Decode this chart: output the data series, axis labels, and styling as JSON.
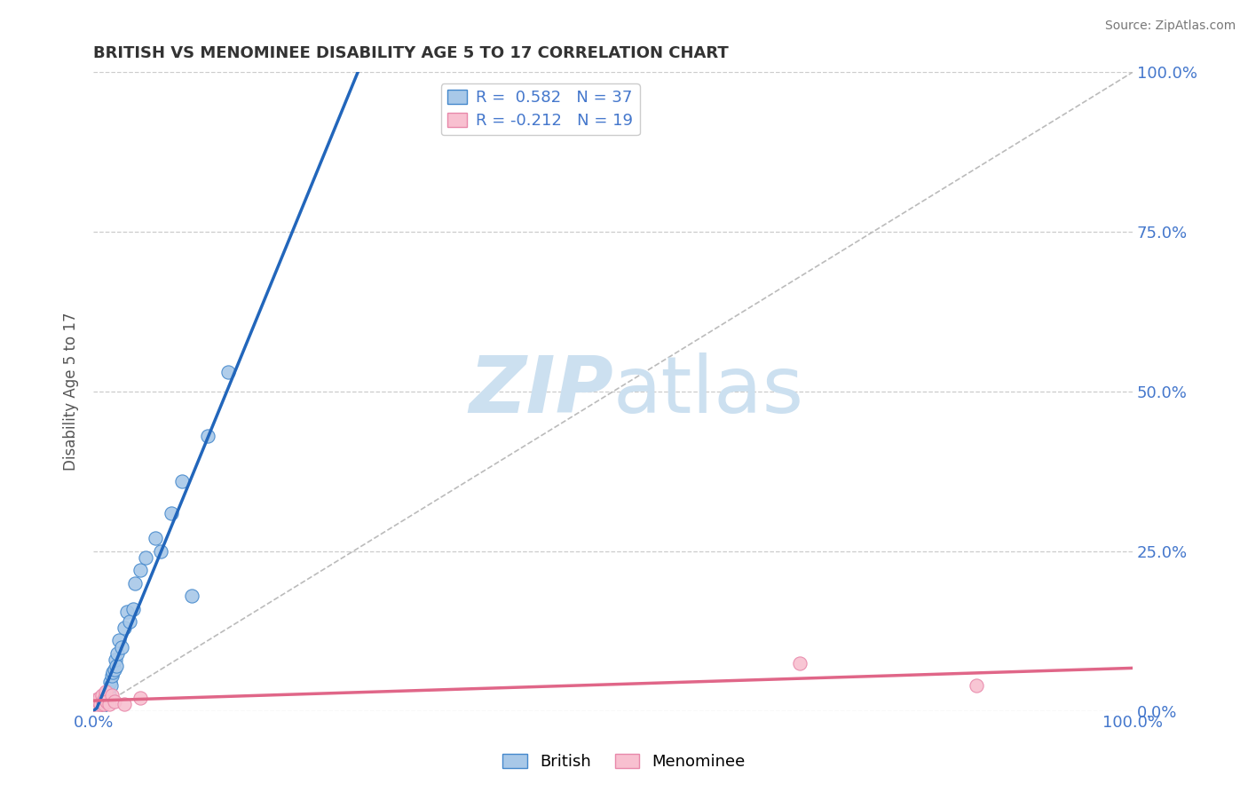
{
  "title": "BRITISH VS MENOMINEE DISABILITY AGE 5 TO 17 CORRELATION CHART",
  "source": "Source: ZipAtlas.com",
  "ylabel": "Disability Age 5 to 17",
  "xlim": [
    0,
    1.0
  ],
  "ylim": [
    0,
    1.0
  ],
  "ytick_labels": [
    "0.0%",
    "25.0%",
    "50.0%",
    "75.0%",
    "100.0%"
  ],
  "ytick_vals": [
    0.0,
    0.25,
    0.5,
    0.75,
    1.0
  ],
  "british_R": 0.582,
  "british_N": 37,
  "menominee_R": -0.212,
  "menominee_N": 19,
  "british_color": "#a8c8e8",
  "british_edge_color": "#4488cc",
  "british_line_color": "#2266bb",
  "menominee_color": "#f8c0d0",
  "menominee_edge_color": "#e888aa",
  "menominee_line_color": "#e06688",
  "diagonal_color": "#bbbbbb",
  "grid_color": "#cccccc",
  "background_color": "#ffffff",
  "title_color": "#333333",
  "tick_color": "#4477cc",
  "watermark_color": "#cce0f0",
  "british_x": [
    0.003,
    0.004,
    0.005,
    0.006,
    0.007,
    0.008,
    0.009,
    0.01,
    0.011,
    0.012,
    0.013,
    0.014,
    0.015,
    0.016,
    0.017,
    0.018,
    0.019,
    0.02,
    0.021,
    0.022,
    0.023,
    0.025,
    0.027,
    0.03,
    0.032,
    0.035,
    0.038,
    0.04,
    0.045,
    0.05,
    0.06,
    0.065,
    0.075,
    0.085,
    0.095,
    0.11,
    0.13
  ],
  "british_y": [
    0.005,
    0.008,
    0.01,
    0.012,
    0.01,
    0.008,
    0.015,
    0.02,
    0.015,
    0.025,
    0.02,
    0.03,
    0.025,
    0.045,
    0.04,
    0.055,
    0.06,
    0.065,
    0.08,
    0.07,
    0.09,
    0.11,
    0.1,
    0.13,
    0.155,
    0.14,
    0.16,
    0.2,
    0.22,
    0.24,
    0.27,
    0.25,
    0.31,
    0.36,
    0.18,
    0.43,
    0.53
  ],
  "menominee_x": [
    0.002,
    0.003,
    0.004,
    0.005,
    0.006,
    0.007,
    0.008,
    0.009,
    0.01,
    0.011,
    0.012,
    0.013,
    0.015,
    0.018,
    0.02,
    0.03,
    0.045,
    0.68,
    0.85
  ],
  "menominee_y": [
    0.018,
    0.012,
    0.008,
    0.015,
    0.02,
    0.01,
    0.025,
    0.015,
    0.01,
    0.02,
    0.03,
    0.015,
    0.01,
    0.025,
    0.015,
    0.01,
    0.02,
    0.075,
    0.04
  ]
}
